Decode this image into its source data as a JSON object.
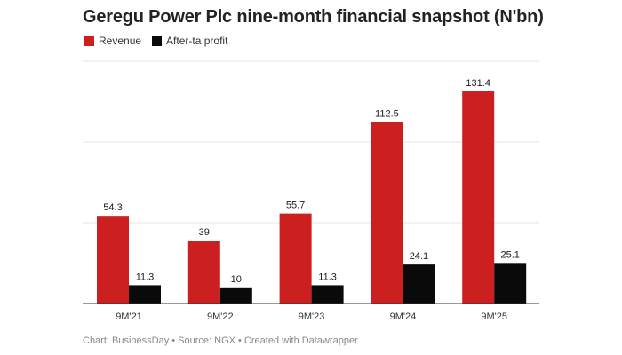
{
  "chart_data": {
    "type": "bar",
    "title": "Geregu Power Plc nine-month financial snapshot (N'bn)",
    "categories": [
      "9M'21",
      "9M'22",
      "9M'23",
      "9M'24",
      "9M'25"
    ],
    "series": [
      {
        "name": "Revenue",
        "color": "#cc1f1f",
        "values": [
          54.3,
          39,
          55.7,
          112.5,
          131.4
        ]
      },
      {
        "name": "After-ta profit",
        "color": "#0a0a0a",
        "values": [
          11.3,
          10,
          11.3,
          24.1,
          25.1
        ]
      }
    ],
    "xlabel": "",
    "ylabel": "",
    "ylim": [
      0,
      150
    ],
    "grid": true,
    "legend_position": "top-left"
  },
  "footer": {
    "source_text": "Chart: BusinessDay • Source: NGX • Created with Datawrapper"
  }
}
